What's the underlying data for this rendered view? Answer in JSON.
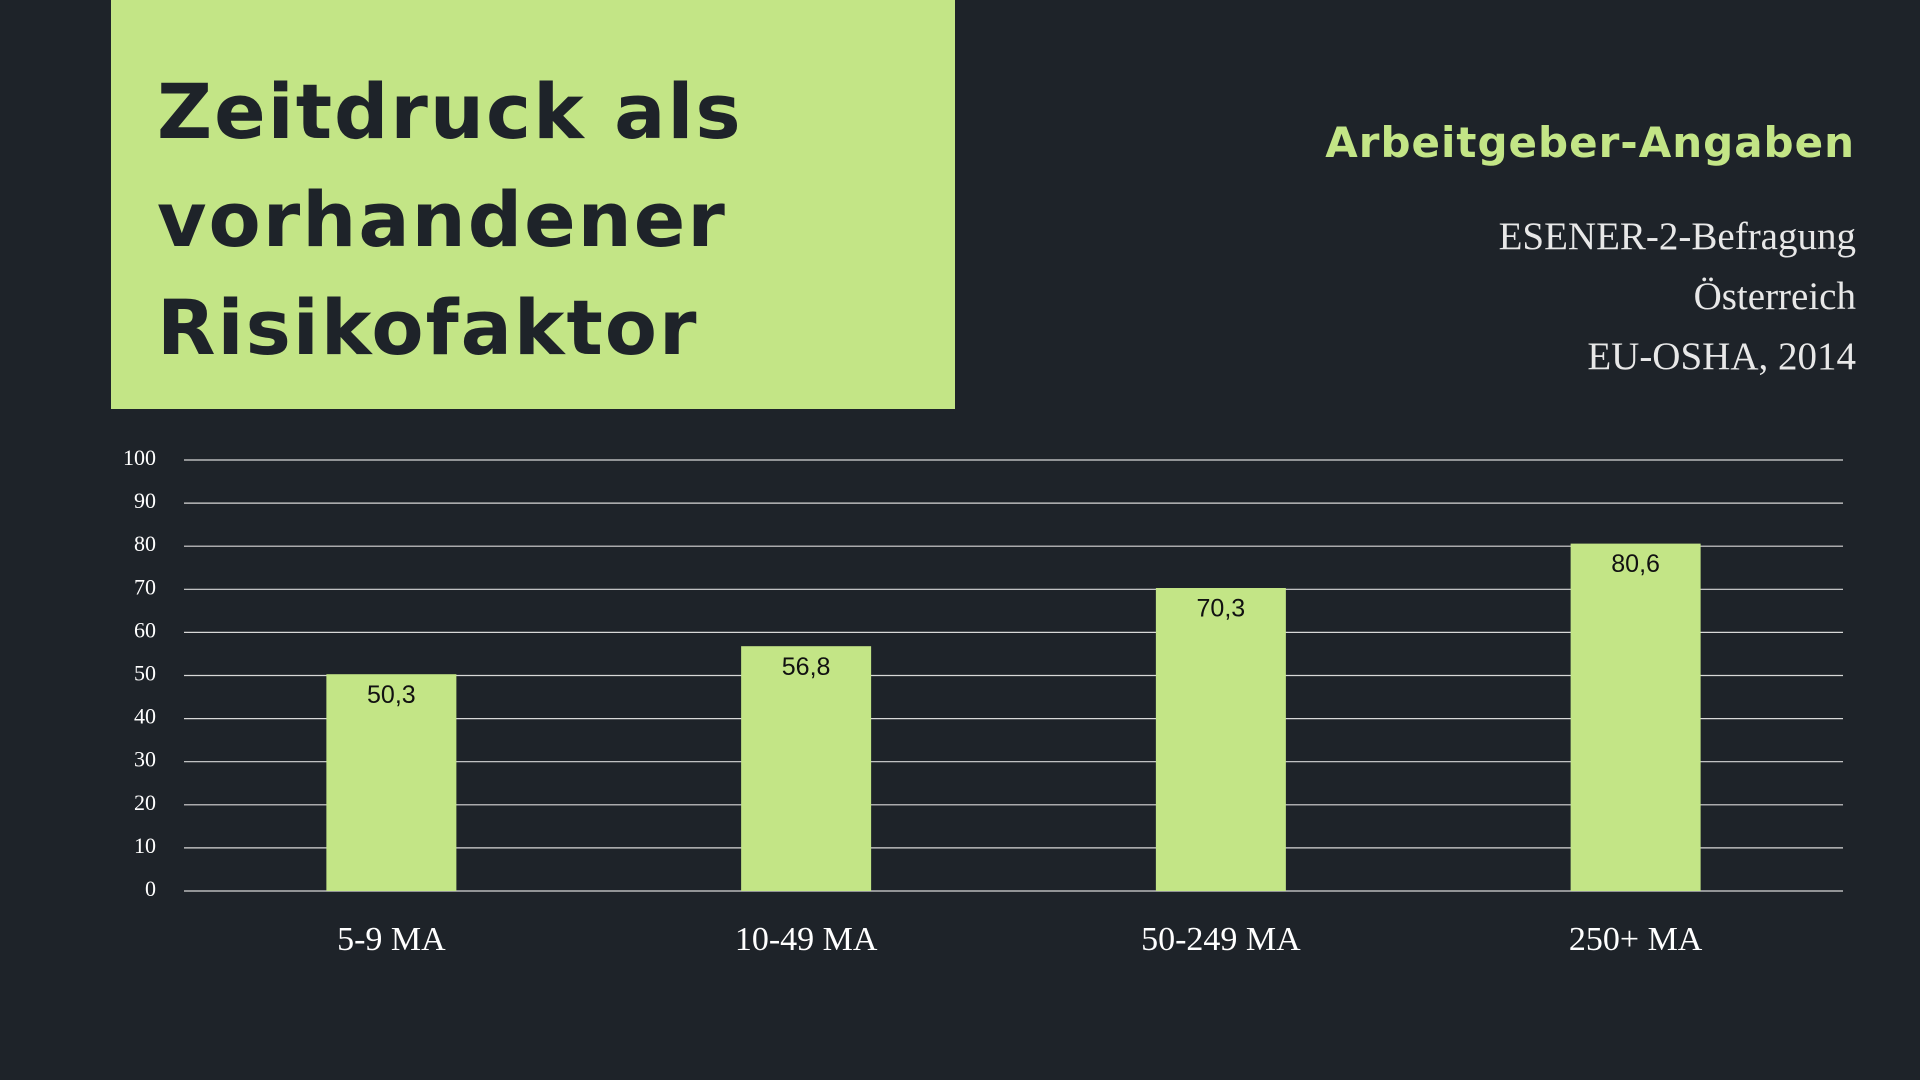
{
  "chart_data": {
    "type": "bar",
    "title": "Zeitdruck als vorhandener Risikofaktor",
    "subtitle": "Arbeitgeber-Angaben",
    "source": [
      "ESENER-2-Befragung",
      "Österreich",
      "EU-OSHA, 2014"
    ],
    "categories": [
      "5-9 MA",
      "10-49 MA",
      "50-249 MA",
      "250+ MA"
    ],
    "values": [
      50.3,
      56.8,
      70.3,
      80.6
    ],
    "value_labels": [
      "50,3",
      "56,8",
      "70,3",
      "80,6"
    ],
    "color": "#c3e586",
    "ylim": [
      0,
      100
    ],
    "yticks": [
      0,
      10,
      20,
      30,
      40,
      50,
      60,
      70,
      80,
      90,
      100
    ],
    "grid": true
  }
}
